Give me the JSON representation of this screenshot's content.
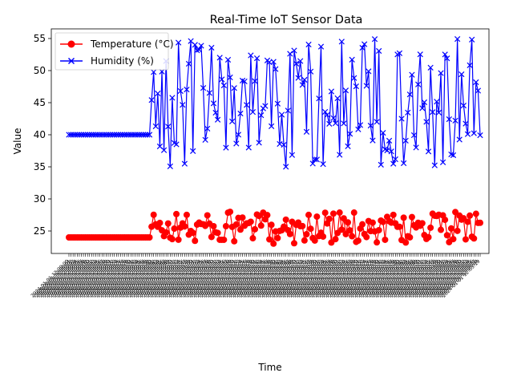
{
  "chart_data": {
    "type": "line",
    "title": "Real-Time IoT Sensor Data",
    "xlabel": "Time",
    "ylabel": "Value",
    "ylim": [
      21.5,
      56.5
    ],
    "yticks": [
      25,
      30,
      35,
      40,
      45,
      50,
      55
    ],
    "grid": false,
    "legend_position": "top-left",
    "point_count": 200,
    "baseline_points": 40,
    "series": [
      {
        "name": "Temperature (°C)",
        "color": "#ff0000",
        "marker": "circle",
        "baseline_value": 24,
        "value_range": [
          23,
          28
        ]
      },
      {
        "name": "Humidity (%)",
        "color": "#0000ff",
        "marker": "x",
        "baseline_value": 40,
        "value_range": [
          35,
          55
        ]
      }
    ]
  }
}
